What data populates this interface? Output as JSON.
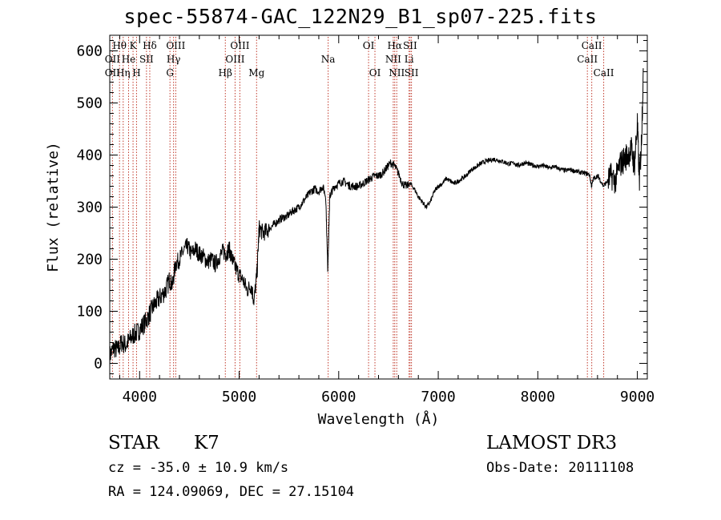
{
  "title": "spec-55874-GAC_122N29_B1_sp07-225.fits",
  "footer": {
    "class": "STAR",
    "subclass": "K7",
    "survey": "LAMOST DR3",
    "cz": "cz = -35.0 ± 10.9 km/s",
    "obsdate": "Obs-Date: 20111108",
    "coords": "RA = 124.09069, DEC =  27.15104"
  },
  "colors": {
    "spectrum": "#000000",
    "line_marker": "#c0392b",
    "axes": "#000000"
  },
  "chart_data": {
    "type": "line",
    "title": "spec-55874-GAC_122N29_B1_sp07-225.fits",
    "xlabel": "Wavelength (Å)",
    "ylabel": "Flux (relative)",
    "xlim": [
      3700,
      9100
    ],
    "ylim": [
      -30,
      630
    ],
    "xticks": [
      4000,
      5000,
      6000,
      7000,
      8000,
      9000
    ],
    "yticks": [
      0,
      100,
      200,
      300,
      400,
      500,
      600
    ],
    "grid": false,
    "series": [
      {
        "x": [
          3700,
          3740,
          3780,
          3820,
          3860,
          3900,
          3940,
          3980,
          4020,
          4060,
          4100,
          4140,
          4180,
          4220,
          4260,
          4300,
          4330,
          4360,
          4400,
          4440,
          4480,
          4520,
          4560,
          4600,
          4640,
          4680,
          4720,
          4760,
          4800,
          4840,
          4870,
          4900,
          4930,
          4960,
          5000,
          5040,
          5080,
          5120,
          5150,
          5180,
          5200,
          5240,
          5280,
          5320,
          5360,
          5400,
          5440,
          5480,
          5520,
          5560,
          5600,
          5640,
          5680,
          5720,
          5760,
          5800,
          5840,
          5870,
          5890,
          5910,
          5930,
          5960,
          6000,
          6040,
          6080,
          6120,
          6160,
          6200,
          6240,
          6280,
          6320,
          6360,
          6400,
          6440,
          6480,
          6520,
          6560,
          6600,
          6640,
          6680,
          6720,
          6760,
          6800,
          6840,
          6880,
          6920,
          6960,
          7000,
          7040,
          7080,
          7120,
          7160,
          7200,
          7240,
          7280,
          7320,
          7360,
          7400,
          7440,
          7480,
          7520,
          7560,
          7600,
          7640,
          7680,
          7720,
          7760,
          7800,
          7840,
          7880,
          7920,
          7960,
          8000,
          8040,
          8080,
          8120,
          8160,
          8200,
          8240,
          8280,
          8320,
          8360,
          8400,
          8440,
          8480,
          8520,
          8540,
          8560,
          8600,
          8620,
          8660,
          8700,
          8740,
          8780,
          8820,
          8860,
          8900,
          8940,
          8970,
          9000,
          9020,
          9040,
          9060
        ],
        "y": [
          15,
          30,
          25,
          40,
          35,
          45,
          55,
          60,
          70,
          80,
          95,
          110,
          120,
          130,
          140,
          160,
          150,
          190,
          200,
          215,
          225,
          210,
          220,
          210,
          205,
          195,
          200,
          190,
          205,
          215,
          210,
          220,
          200,
          185,
          170,
          160,
          140,
          150,
          120,
          175,
          260,
          250,
          255,
          262,
          268,
          275,
          280,
          282,
          290,
          295,
          300,
          310,
          320,
          330,
          335,
          330,
          340,
          320,
          180,
          320,
          330,
          340,
          345,
          350,
          345,
          340,
          340,
          340,
          345,
          350,
          355,
          360,
          360,
          365,
          375,
          385,
          380,
          365,
          345,
          340,
          345,
          335,
          320,
          310,
          300,
          310,
          330,
          340,
          345,
          355,
          350,
          345,
          350,
          355,
          360,
          370,
          375,
          380,
          385,
          388,
          390,
          392,
          390,
          388,
          385,
          383,
          385,
          380,
          383,
          385,
          382,
          380,
          378,
          380,
          378,
          375,
          378,
          375,
          372,
          370,
          372,
          370,
          368,
          366,
          365,
          362,
          340,
          355,
          360,
          355,
          340,
          350,
          360,
          350,
          380,
          390,
          400,
          410,
          380,
          460,
          350,
          420,
          560
        ]
      }
    ],
    "lines": [
      {
        "label": "Hθ",
        "x": 3798,
        "row": 0
      },
      {
        "label": "OII",
        "x": 3727,
        "row": 1
      },
      {
        "label": "OII",
        "x": 3727,
        "row": 2
      },
      {
        "label": "Hη",
        "x": 3835,
        "row": 2
      },
      {
        "label": "K",
        "x": 3934,
        "row": 0
      },
      {
        "label": "He",
        "x": 3889,
        "row": 1
      },
      {
        "label": "H",
        "x": 3969,
        "row": 2
      },
      {
        "label": "SII",
        "x": 4069,
        "row": 1
      },
      {
        "label": "Hδ",
        "x": 4102,
        "row": 0
      },
      {
        "label": "OIII",
        "x": 4363,
        "row": 0
      },
      {
        "label": "Hγ",
        "x": 4341,
        "row": 1
      },
      {
        "label": "G",
        "x": 4305,
        "row": 2
      },
      {
        "label": "OIII",
        "x": 5007,
        "row": 0
      },
      {
        "label": "OIII",
        "x": 4959,
        "row": 1
      },
      {
        "label": "Hβ",
        "x": 4861,
        "row": 2
      },
      {
        "label": "Mg",
        "x": 5175,
        "row": 2
      },
      {
        "label": "Na",
        "x": 5894,
        "row": 1
      },
      {
        "label": "OI",
        "x": 6300,
        "row": 0
      },
      {
        "label": "OI",
        "x": 6364,
        "row": 2
      },
      {
        "label": "Hα",
        "x": 6563,
        "row": 0
      },
      {
        "label": "NII",
        "x": 6548,
        "row": 1
      },
      {
        "label": "NII",
        "x": 6583,
        "row": 2
      },
      {
        "label": "SII",
        "x": 6717,
        "row": 0
      },
      {
        "label": "Li",
        "x": 6707,
        "row": 1
      },
      {
        "label": "SII",
        "x": 6731,
        "row": 2
      },
      {
        "label": "CaII",
        "x": 8542,
        "row": 0
      },
      {
        "label": "CaII",
        "x": 8498,
        "row": 1
      },
      {
        "label": "CaII",
        "x": 8662,
        "row": 2
      }
    ]
  }
}
